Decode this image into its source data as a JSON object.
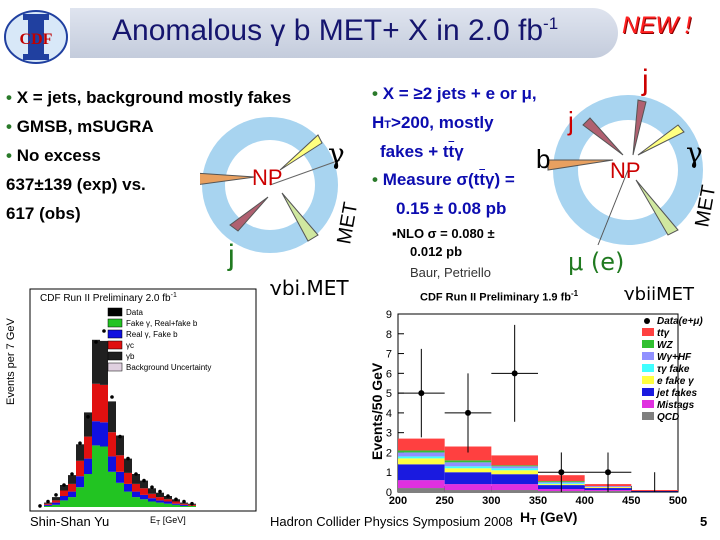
{
  "header": {
    "logo_text": "CDF",
    "title": "Anomalous γ b MET+ X in 2.0 fb",
    "title_sup": "-1",
    "badge": "NEW !"
  },
  "left": {
    "bullet_1": "X = jets, background mostly fakes",
    "bullet_2": "GMSB, mSUGRA",
    "bullet_3": "No excess",
    "line_4": "637±139 (exp) vs.",
    "line_5": "617 (obs)"
  },
  "left_diagram": {
    "label_b": "b",
    "label_np": "NP",
    "label_gamma": "γ",
    "label_met": "MET",
    "label_j": "j",
    "channel": "γbj.MET"
  },
  "right": {
    "bullet_1": "X = ≥2 jets + e or μ,",
    "line_2": "H",
    "line_2_sub": "T",
    "line_2_rest": ">200,  mostly",
    "line_3": "fakes + t",
    "line_3_bar": "t",
    "line_3_end": "γ",
    "bullet_2": "Measure σ(t",
    "bullet_2_bar": "t",
    "bullet_2_end": "γ) =",
    "line_5": "0.15 ± 0.08 pb",
    "nlo_1": "▪NLO  σ = 0.080 ±",
    "nlo_2": "0.012 pb",
    "credit": "Baur, Petriello"
  },
  "right_diagram": {
    "label_j_top": "j",
    "label_j_mid": "j",
    "label_b": "b",
    "label_np": "NP",
    "label_gamma": "γ",
    "label_met": "MET",
    "label_mu": "μ (e)",
    "channel": "γbjjMET"
  },
  "left_plot": {
    "caption": "CDF Run II Preliminary 2.0 fb",
    "caption_sup": "-1",
    "ylabel": "Events per 7 GeV",
    "xlabel": "E",
    "xlabel_sub": "T",
    "xlabel_rest": " [GeV]",
    "legend": [
      "Data",
      "Fake γ, Real+fake b",
      "Real γ, Fake b",
      "γc",
      "γb",
      "Background Uncertainty"
    ]
  },
  "right_plot": {
    "caption": "CDF Run II Preliminary 1.9 fb",
    "caption_sup": "-1",
    "ylabel": "Events/50 GeV",
    "xlabel": "H",
    "xlabel_sub": "T",
    "xlabel_rest": " (GeV)",
    "y_ticks": [
      "0",
      "1",
      "2",
      "3",
      "4",
      "5",
      "6",
      "7",
      "8",
      "9"
    ],
    "x_ticks": [
      "200",
      "250",
      "300",
      "350",
      "400",
      "450",
      "500"
    ],
    "legend": [
      "Data(e+μ)",
      "ttγ",
      "WZ",
      "Wγ+HF",
      "τγ fake",
      "e fake γ",
      "jet fakes",
      "Mistags",
      "QCD"
    ]
  },
  "chart_data": [
    {
      "type": "bar",
      "title": "CDF Run II Preliminary 2.0 fb-1",
      "ylabel": "Events per 7 GeV",
      "xlabel": "ET [GeV]",
      "series": [
        {
          "name": "Fake γ, Real+fake b",
          "values": [
            0,
            1,
            2,
            6,
            9,
            18,
            30,
            56,
            55,
            32,
            22,
            14,
            9,
            7,
            5,
            4,
            3,
            2,
            1,
            1
          ]
        },
        {
          "name": "Real γ, Fake b",
          "values": [
            0,
            1,
            2,
            4,
            5,
            10,
            14,
            22,
            22,
            14,
            10,
            7,
            5,
            4,
            3,
            2,
            2,
            1,
            1,
            0
          ]
        },
        {
          "name": "γc",
          "values": [
            0,
            1,
            2,
            5,
            7,
            14,
            20,
            34,
            34,
            22,
            15,
            10,
            7,
            6,
            4,
            3,
            2,
            2,
            1,
            1
          ]
        },
        {
          "name": "γb",
          "values": [
            0,
            1,
            3,
            5,
            8,
            15,
            22,
            40,
            40,
            28,
            18,
            13,
            9,
            7,
            5,
            4,
            3,
            2,
            1,
            1
          ]
        }
      ],
      "data_points": [
        1,
        5,
        11,
        20,
        30,
        58,
        82,
        150,
        160,
        100,
        64,
        44,
        30,
        24,
        18,
        14,
        10,
        7,
        5,
        3
      ]
    },
    {
      "type": "bar",
      "title": "CDF Run II Preliminary 1.9 fb-1",
      "ylabel": "Events/50 GeV",
      "xlabel": "HT (GeV)",
      "x": [
        225,
        275,
        325,
        375,
        425,
        475
      ],
      "ylim": [
        0,
        9
      ],
      "xlim": [
        200,
        500
      ],
      "data": [
        5,
        4,
        6,
        1,
        1,
        0
      ],
      "series": [
        {
          "name": "QCD",
          "values": [
            0.2,
            0.1,
            0.1,
            0.05,
            0.05,
            0.0
          ]
        },
        {
          "name": "Mistags",
          "values": [
            0.4,
            0.3,
            0.3,
            0.1,
            0.05,
            0.0
          ]
        },
        {
          "name": "jet fakes",
          "values": [
            0.8,
            0.6,
            0.5,
            0.2,
            0.1,
            0.05
          ]
        },
        {
          "name": "e fake γ",
          "values": [
            0.3,
            0.2,
            0.2,
            0.05,
            0.05,
            0.0
          ]
        },
        {
          "name": "τγ fake",
          "values": [
            0.1,
            0.1,
            0.1,
            0.05,
            0.0,
            0.0
          ]
        },
        {
          "name": "Wγ+HF",
          "values": [
            0.2,
            0.2,
            0.1,
            0.05,
            0.05,
            0.0
          ]
        },
        {
          "name": "WZ",
          "values": [
            0.1,
            0.1,
            0.05,
            0.05,
            0.0,
            0.0
          ]
        },
        {
          "name": "ttγ",
          "values": [
            0.6,
            0.7,
            0.5,
            0.3,
            0.1,
            0.05
          ]
        }
      ]
    }
  ],
  "footer": {
    "author": "Shin-Shan Yu",
    "conference": "Hadron Collider Physics Symposium 2008",
    "page": "5"
  },
  "colors": {
    "title_text": "#15156e",
    "new_badge": "#ff2020",
    "bullet_blue": "#0c0cb0",
    "jet_green": "#207a20",
    "diagram_ring": "#a8d4f0",
    "np_red": "#cc0000"
  }
}
